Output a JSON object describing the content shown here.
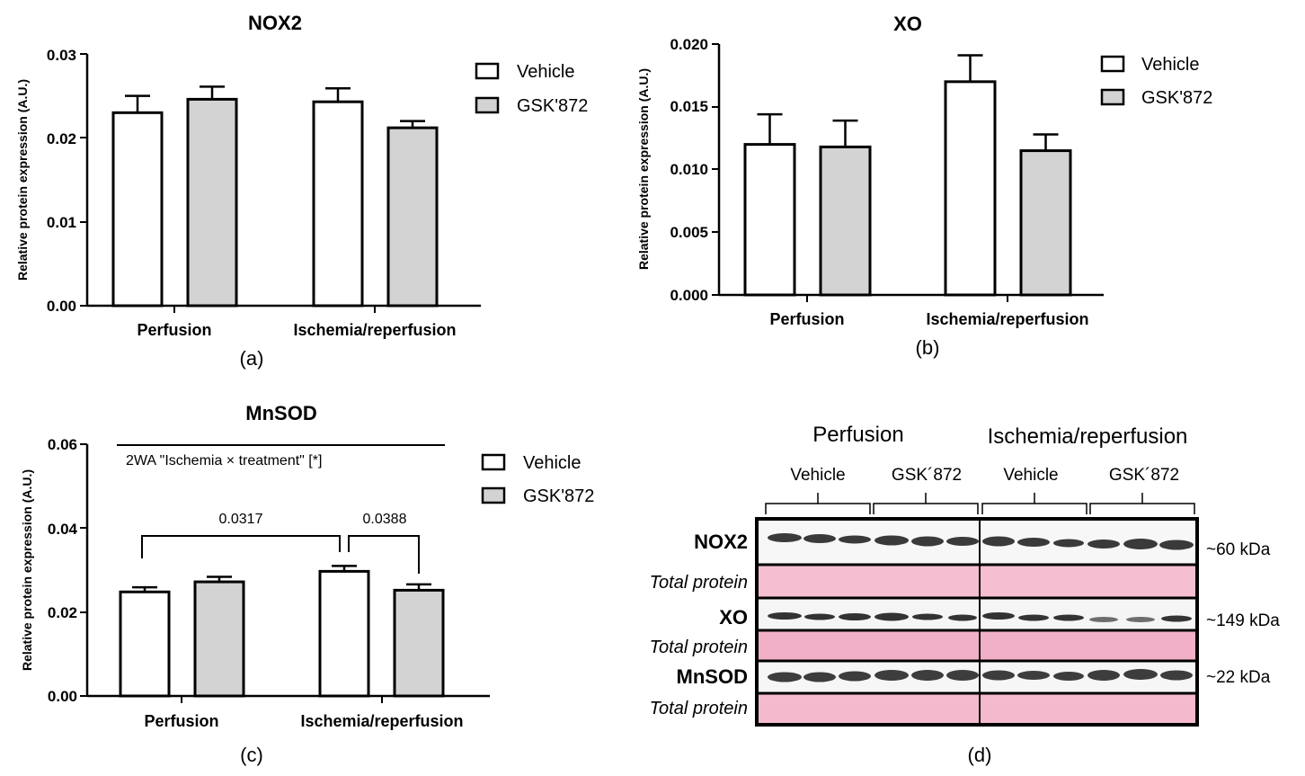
{
  "chart_data": [
    {
      "id": "a",
      "type": "bar",
      "title": "NOX2",
      "panel_label": "(a)",
      "ylabel": "Relative protein expression (A.U.)",
      "ylim": [
        0,
        0.03
      ],
      "yticks": [
        "0.00",
        "0.01",
        "0.02",
        "0.03"
      ],
      "categories": [
        "Perfusion",
        "Ischemia/reperfusion"
      ],
      "series": [
        {
          "name": "Vehicle",
          "values": [
            0.023,
            0.0243
          ],
          "errors": [
            0.002,
            0.0016
          ]
        },
        {
          "name": "GSK'872",
          "values": [
            0.0246,
            0.0212
          ],
          "errors": [
            0.0015,
            0.0008
          ]
        }
      ]
    },
    {
      "id": "b",
      "type": "bar",
      "title": "XO",
      "panel_label": "(b)",
      "ylabel": "Relative protein expression (A.U.)",
      "ylim": [
        0,
        0.02
      ],
      "yticks": [
        "0.000",
        "0.005",
        "0.010",
        "0.015",
        "0.020"
      ],
      "categories": [
        "Perfusion",
        "Ischemia/reperfusion"
      ],
      "series": [
        {
          "name": "Vehicle",
          "values": [
            0.012,
            0.017
          ],
          "errors": [
            0.0024,
            0.0021
          ]
        },
        {
          "name": "GSK'872",
          "values": [
            0.0118,
            0.0115
          ],
          "errors": [
            0.0021,
            0.0013
          ]
        }
      ]
    },
    {
      "id": "c",
      "type": "bar",
      "title": "MnSOD",
      "panel_label": "(c)",
      "ylabel": "Relative protein expression (A.U.)",
      "ylim": [
        0,
        0.06
      ],
      "yticks": [
        "0.00",
        "0.02",
        "0.04",
        "0.06"
      ],
      "categories": [
        "Perfusion",
        "Ischemia/reperfusion"
      ],
      "series": [
        {
          "name": "Vehicle",
          "values": [
            0.0248,
            0.0297
          ],
          "errors": [
            0.0011,
            0.0013
          ]
        },
        {
          "name": "GSK'872",
          "values": [
            0.0272,
            0.0252
          ],
          "errors": [
            0.0012,
            0.0014
          ]
        }
      ],
      "annotations": {
        "two_way": "2WA \"Ischemia × treatment\" [*]",
        "p1": "0.0317",
        "p2": "0.0388"
      }
    }
  ],
  "legend": {
    "vehicle": "Vehicle",
    "gsk": "GSK'872"
  },
  "colors": {
    "vehicle": "#ffffff",
    "gsk": "#d3d3d3",
    "stroke": "#000000",
    "stain": "#f2a8c2"
  },
  "blot": {
    "panel_label": "(d)",
    "group_perfusion": "Perfusion",
    "group_ir": "Ischemia/reperfusion",
    "sub_vehicle": "Vehicle",
    "sub_gsk": "GSK´872",
    "rows": [
      {
        "protein": "NOX2",
        "kda": "~60 kDa"
      },
      {
        "protein": "XO",
        "kda": "~149 kDa"
      },
      {
        "protein": "MnSOD",
        "kda": "~22 kDa"
      }
    ],
    "total_protein": "Total protein"
  }
}
